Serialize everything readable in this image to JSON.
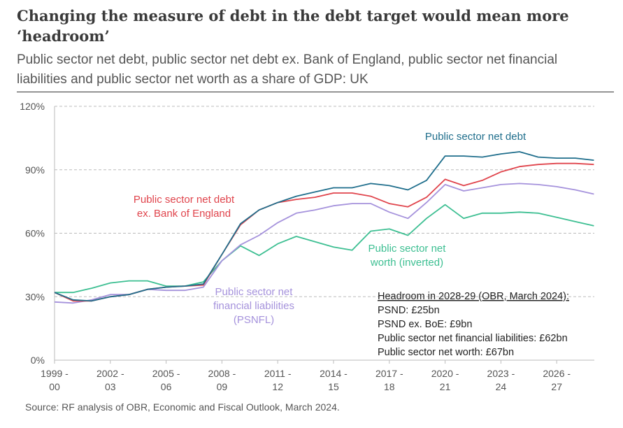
{
  "title": "Changing the measure of debt in the debt target would mean more ‘headroom’",
  "subtitle": "Public sector net debt, public sector net debt ex. Bank of England, public sector net financial liabilities and public sector net worth as a share of GDP: UK",
  "source": "Source: RF analysis of OBR, Economic and Fiscal Outlook, March 2024.",
  "chart_data": {
    "type": "line",
    "x": [
      "1999-00",
      "2000-01",
      "2001-02",
      "2002-03",
      "2003-04",
      "2004-05",
      "2005-06",
      "2006-07",
      "2007-08",
      "2008-09",
      "2009-10",
      "2010-11",
      "2011-12",
      "2012-13",
      "2013-14",
      "2014-15",
      "2015-16",
      "2016-17",
      "2017-18",
      "2018-19",
      "2019-20",
      "2020-21",
      "2021-22",
      "2022-23",
      "2023-24",
      "2024-25",
      "2025-26",
      "2026-27",
      "2027-28",
      "2028-29"
    ],
    "xticks": [
      {
        "index": 0,
        "line1": "1999 -",
        "line2": "00"
      },
      {
        "index": 3,
        "line1": "2002 -",
        "line2": "03"
      },
      {
        "index": 6,
        "line1": "2005 -",
        "line2": "06"
      },
      {
        "index": 9,
        "line1": "2008 -",
        "line2": "09"
      },
      {
        "index": 12,
        "line1": "2011 -",
        "line2": "12"
      },
      {
        "index": 15,
        "line1": "2014 -",
        "line2": "15"
      },
      {
        "index": 18,
        "line1": "2017 -",
        "line2": "18"
      },
      {
        "index": 21,
        "line1": "2020 -",
        "line2": "21"
      },
      {
        "index": 24,
        "line1": "2023 -",
        "line2": "24"
      },
      {
        "index": 27,
        "line1": "2026 -",
        "line2": "27"
      }
    ],
    "yticks": [
      {
        "value": 0,
        "label": "0%"
      },
      {
        "value": 30,
        "label": "30%"
      },
      {
        "value": 60,
        "label": "60%"
      },
      {
        "value": 90,
        "label": "90%"
      },
      {
        "value": 120,
        "label": "120%"
      }
    ],
    "ylim": [
      0,
      120
    ],
    "grid": true,
    "series": [
      {
        "name": "Public sector net debt",
        "label_lines": [
          "Public sector net debt"
        ],
        "color": "#1f6e8c",
        "values": [
          32,
          28.5,
          28,
          30,
          31,
          33.5,
          34.5,
          35,
          36,
          50,
          64.5,
          71,
          74.5,
          77.5,
          79.5,
          81.5,
          81.5,
          83.5,
          82.5,
          80.5,
          85,
          96.5,
          96.5,
          96,
          97.5,
          98.5,
          96,
          95.5,
          95.5,
          94.5
        ]
      },
      {
        "name": "Public sector net debt ex. Bank of England",
        "label_lines": [
          "Public sector net debt",
          "ex. Bank of England"
        ],
        "color": "#e0444c",
        "values": [
          32,
          28,
          28,
          30,
          31,
          33.5,
          34.5,
          35,
          35.5,
          50,
          64,
          71,
          74.5,
          76,
          77,
          79,
          79,
          77.5,
          74,
          72.5,
          77,
          85.5,
          82.5,
          85,
          89,
          91.5,
          92.5,
          93,
          93,
          92.5
        ]
      },
      {
        "name": "Public sector net financial liabilities (PSNFL)",
        "label_lines": [
          "Public sector net",
          "financial liabilities",
          "(PSNFL)"
        ],
        "color": "#a592dc",
        "values": [
          27.5,
          27,
          28.5,
          31,
          31,
          33.5,
          33,
          33,
          34.5,
          47,
          54.5,
          59,
          65,
          69.5,
          71,
          73,
          74,
          74,
          70,
          67,
          74.5,
          83,
          80,
          81.5,
          83,
          83.5,
          83,
          82,
          80.5,
          78.5
        ]
      },
      {
        "name": "Public sector net worth (inverted)",
        "label_lines": [
          "Public sector net",
          "worth (inverted)"
        ],
        "color": "#3dbf92",
        "values": [
          32,
          32,
          34,
          36.5,
          37.5,
          37.5,
          35,
          35,
          37,
          47,
          54,
          49.5,
          55,
          58.5,
          56,
          53.5,
          52,
          61,
          62,
          59,
          67,
          73.5,
          67,
          69.5,
          69.5,
          70,
          69.5,
          67.5,
          65.5,
          63.5
        ]
      }
    ],
    "annotation": {
      "heading": "Headroom in 2028-29 (OBR, March 2024):",
      "lines": [
        "PSND: £25bn",
        "PSND ex. BoE: £9bn",
        "Public sector net financial liabilities: £62bn",
        "Public sector net worth: £67bn"
      ]
    }
  }
}
